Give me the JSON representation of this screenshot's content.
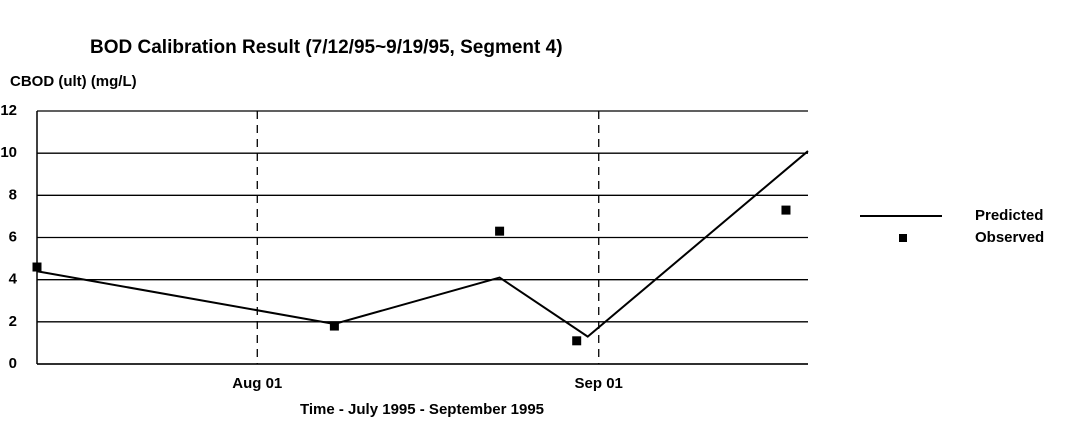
{
  "chart_data": {
    "type": "line",
    "title": "BOD Calibration Result (7/12/95~9/19/95, Segment 4)",
    "y_label": "CBOD (ult) (mg/L)",
    "x_label": "Time  - July 1995 - September 1995",
    "series": [
      {
        "name": "Predicted",
        "color": "#000000",
        "kind": "line",
        "x": [
          "07-12",
          "08-08",
          "08-23",
          "08-31",
          "09-20"
        ],
        "values": [
          4.4,
          1.9,
          4.1,
          1.3,
          10.1
        ]
      },
      {
        "name": "Observed",
        "color": "#000000",
        "kind": "marker",
        "x": [
          "07-12",
          "08-08",
          "08-23",
          "08-30",
          "09-18"
        ],
        "values": [
          4.6,
          1.8,
          6.3,
          1.1,
          7.3
        ]
      }
    ],
    "xlim": [
      "07-12",
      "09-20"
    ],
    "xticks": [
      {
        "value": "08-01",
        "label": "Aug 01"
      },
      {
        "value": "09-01",
        "label": "Sep 01"
      }
    ],
    "ylim": [
      0,
      12
    ],
    "yticks": [
      0,
      2,
      4,
      6,
      8,
      10,
      12
    ],
    "grid": true,
    "legend": "right"
  }
}
